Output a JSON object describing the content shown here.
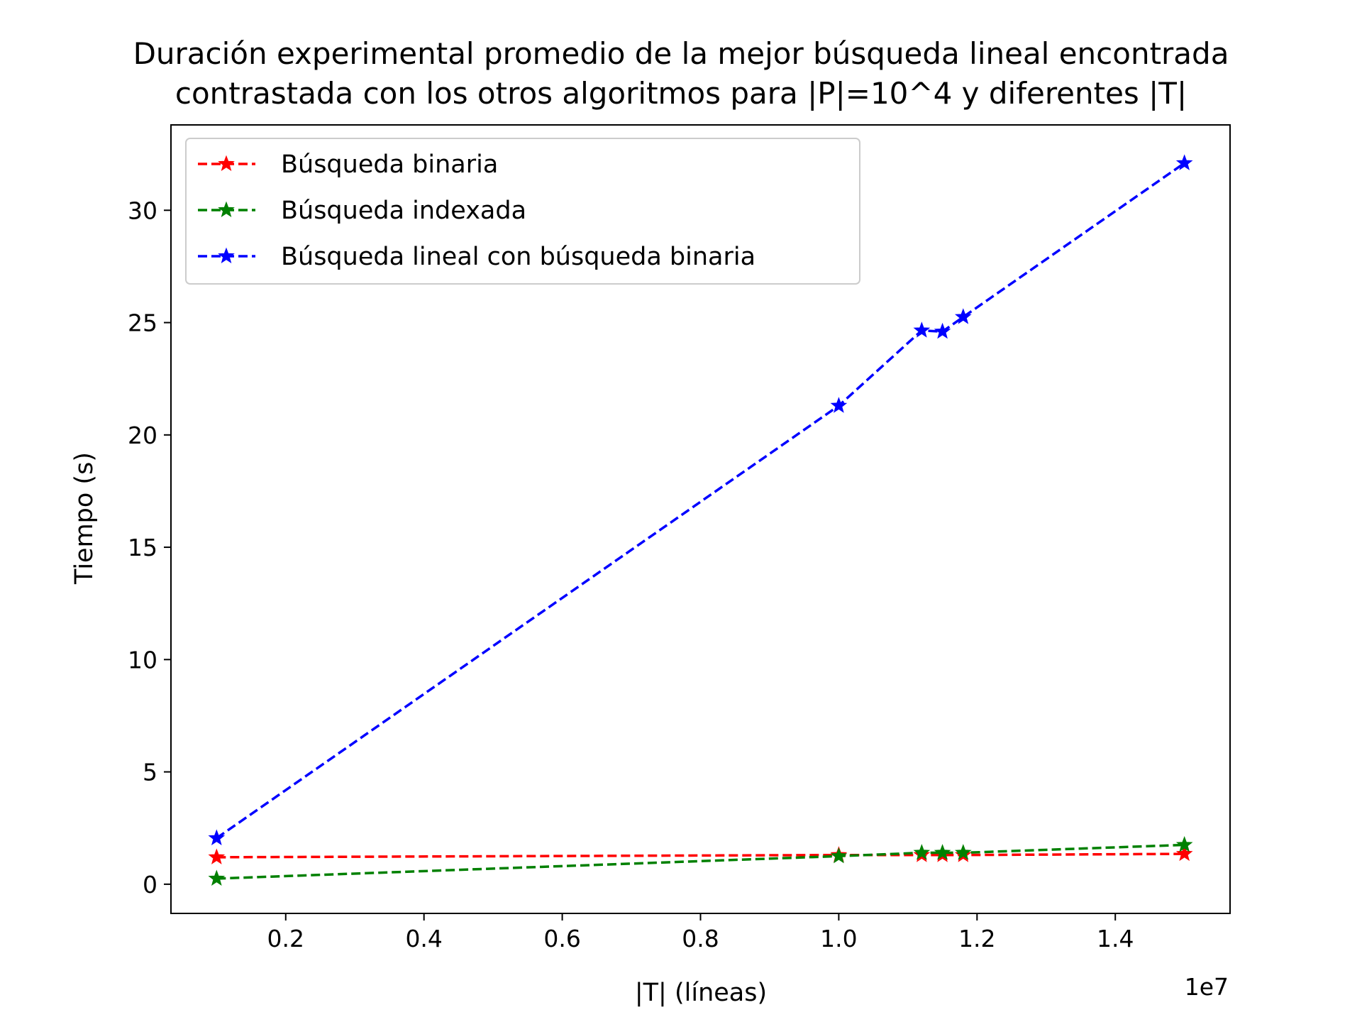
{
  "chart_data": {
    "type": "line",
    "title": [
      "Duración experimental promedio de la mejor búsqueda lineal encontrada",
      "contrastada con los otros algoritmos para |P|=10^4 y diferentes |T|"
    ],
    "xlabel": "|T| (líneas)",
    "ylabel": "Tiempo (s)",
    "x_offset_text": "1e7",
    "x_scale_factor": 10000000,
    "xlim": [
      340000,
      15660000
    ],
    "ylim": [
      -1.3,
      33.8
    ],
    "x_ticks": [
      2000000,
      4000000,
      6000000,
      8000000,
      10000000,
      12000000,
      14000000
    ],
    "x_tick_labels": [
      "0.2",
      "0.4",
      "0.6",
      "0.8",
      "1.0",
      "1.2",
      "1.4"
    ],
    "y_ticks": [
      0,
      5,
      10,
      15,
      20,
      25,
      30
    ],
    "y_tick_labels": [
      "0",
      "5",
      "10",
      "15",
      "20",
      "25",
      "30"
    ],
    "grid": false,
    "legend_position": "top-left",
    "x": [
      1000000,
      10000000,
      11200000,
      11500000,
      11800000,
      15000000
    ],
    "series": [
      {
        "name": "Búsqueda binaria",
        "color": "#ff0000",
        "marker": "star",
        "linestyle": "dashed",
        "values": [
          1.2,
          1.3,
          1.3,
          1.3,
          1.3,
          1.35
        ]
      },
      {
        "name": "Búsqueda indexada",
        "color": "#008000",
        "marker": "star",
        "linestyle": "dashed",
        "values": [
          0.25,
          1.25,
          1.4,
          1.4,
          1.4,
          1.75
        ]
      },
      {
        "name": "Búsqueda lineal con búsqueda binaria",
        "color": "#0000ff",
        "marker": "star",
        "linestyle": "dashed",
        "values": [
          2.05,
          21.3,
          24.65,
          24.6,
          25.25,
          32.1
        ]
      }
    ]
  }
}
